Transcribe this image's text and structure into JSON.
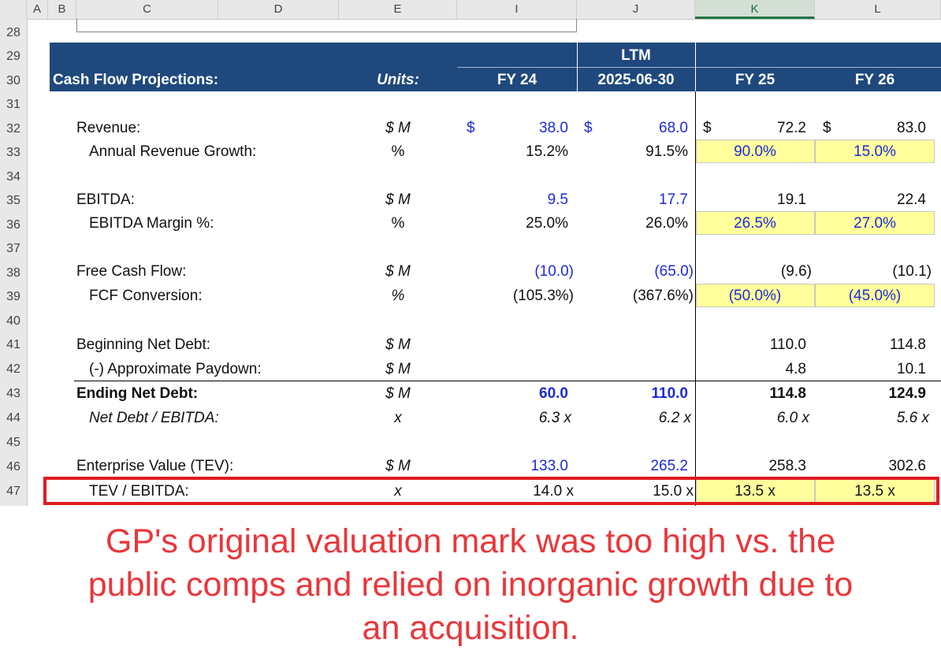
{
  "columns": [
    "A",
    "B",
    "C",
    "D",
    "E",
    "I",
    "J",
    "K",
    "L"
  ],
  "rows": [
    "28",
    "29",
    "30",
    "31",
    "32",
    "33",
    "34",
    "35",
    "36",
    "37",
    "38",
    "39",
    "40",
    "41",
    "42",
    "43",
    "44",
    "45",
    "46",
    "47"
  ],
  "header": {
    "title": "Cash Flow Projections:",
    "units": "Units:",
    "ltm": "LTM",
    "periods": [
      "FY 24",
      "2025-06-30",
      "FY 25",
      "FY 26"
    ]
  },
  "currency_symbol": "$",
  "table": {
    "revenue": {
      "label": "Revenue:",
      "units": "$ M",
      "values": [
        "38.0",
        "68.0",
        "72.2",
        "83.0"
      ]
    },
    "revenue_growth": {
      "label": "Annual Revenue Growth:",
      "units": "%",
      "values": [
        "15.2%",
        "91.5%",
        "90.0%",
        "15.0%"
      ]
    },
    "ebitda": {
      "label": "EBITDA:",
      "units": "$ M",
      "values": [
        "9.5",
        "17.7",
        "19.1",
        "22.4"
      ]
    },
    "ebitda_margin": {
      "label": "EBITDA Margin %:",
      "units": "%",
      "values": [
        "25.0%",
        "26.0%",
        "26.5%",
        "27.0%"
      ]
    },
    "fcf": {
      "label": "Free Cash Flow:",
      "units": "$ M",
      "values": [
        "(10.0)",
        "(65.0)",
        "(9.6)",
        "(10.1)"
      ]
    },
    "fcf_conversion": {
      "label": "FCF Conversion:",
      "units": "%",
      "values": [
        "(105.3%)",
        "(367.6%)",
        "(50.0%)",
        "(45.0%)"
      ]
    },
    "beg_net_debt": {
      "label": "Beginning Net Debt:",
      "units": "$ M",
      "values": [
        "",
        "",
        "110.0",
        "114.8"
      ]
    },
    "paydown": {
      "label": "(-) Approximate Paydown:",
      "units": "$ M",
      "values": [
        "",
        "",
        "4.8",
        "10.1"
      ]
    },
    "end_net_debt": {
      "label": "Ending Net Debt:",
      "units": "$ M",
      "values": [
        "60.0",
        "110.0",
        "114.8",
        "124.9"
      ]
    },
    "net_debt_ebitda": {
      "label": "Net Debt / EBITDA:",
      "units": "x",
      "values": [
        "6.3 x",
        "6.2 x",
        "6.0 x",
        "5.6 x"
      ]
    },
    "tev": {
      "label": "Enterprise Value (TEV):",
      "units": "$ M",
      "values": [
        "133.0",
        "265.2",
        "258.3",
        "302.6"
      ]
    },
    "tev_ebitda": {
      "label": "TEV / EBITDA:",
      "units": "x",
      "values": [
        "14.0 x",
        "15.0 x",
        "13.5 x",
        "13.5 x"
      ]
    }
  },
  "caption": {
    "line1": "GP's original valuation mark was too high vs. the",
    "line2": "public comps and relied on inorganic growth due to",
    "line3": "an acquisition."
  },
  "colors": {
    "header_fill": "#1f497d",
    "input_blue": "#1c2bd4",
    "input_fill": "#ffff9c",
    "highlight_red": "#e11b22",
    "caption_red": "#e8373b"
  }
}
